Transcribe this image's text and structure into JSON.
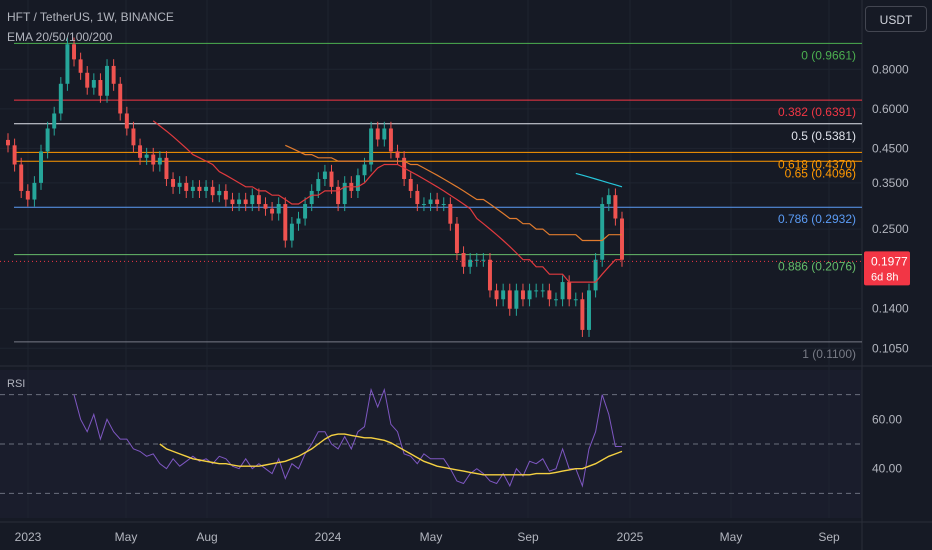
{
  "header": {
    "symbol_title": "HFT / TetherUS, 1W, BINANCE",
    "indicator_label": "EMA 20/50/100/200",
    "currency": "USDT",
    "rsi_label": "RSI"
  },
  "colors": {
    "background": "#161a25",
    "grid": "#1f2430",
    "candle_up": "#26a69a",
    "candle_down": "#ef5350",
    "ema20": "#e03a3e",
    "ema50": "#e07b2e",
    "ema100": "#26c6da",
    "rsi_line": "#7e57c2",
    "rsi_ma": "#f5d142",
    "text": "#b2b5be",
    "price_badge": "#f23645"
  },
  "chart_data": [
    {
      "type": "candlestick",
      "title": "HFT / TetherUS, 1W, BINANCE",
      "scale": "log",
      "ylim": [
        0.095,
        1.25
      ],
      "y_ticks": [
        {
          "value": 0.8,
          "label": "0.8000"
        },
        {
          "value": 0.6,
          "label": "0.6000"
        },
        {
          "value": 0.45,
          "label": "0.4500"
        },
        {
          "value": 0.35,
          "label": "0.3500"
        },
        {
          "value": 0.25,
          "label": "0.2500"
        },
        {
          "value": 0.14,
          "label": "0.1400"
        },
        {
          "value": 0.105,
          "label": "0.1050"
        }
      ],
      "x_ticks": [
        "2023",
        "May",
        "Aug",
        "2024",
        "May",
        "Sep",
        "2025",
        "May",
        "Sep"
      ],
      "last_price": {
        "value": 0.1977,
        "label": "0.1977",
        "countdown": "6d 8h"
      },
      "fib_levels": [
        {
          "value": 0.9661,
          "label": "0 (0.9661)",
          "color": "#4caf50"
        },
        {
          "value": 0.6391,
          "label": "0.382 (0.6391)",
          "color": "#f23645"
        },
        {
          "value": 0.5381,
          "label": "0.5 (0.5381)",
          "color": "#e0e3eb"
        },
        {
          "value": 0.437,
          "label": "0.618 (0.4370)",
          "color": "#ff9800"
        },
        {
          "value": 0.4096,
          "label": "0.65 (0.4096)",
          "color": "#ff9800"
        },
        {
          "value": 0.2932,
          "label": "0.786 (0.2932)",
          "color": "#5b9cf6"
        },
        {
          "value": 0.2076,
          "label": "0.886 (0.2076)",
          "color": "#66bb6a"
        },
        {
          "value": 0.11,
          "label": "1 (0.1100)",
          "color": "#787b86"
        }
      ],
      "series": [
        {
          "name": "HFT",
          "close": [
            0.46,
            0.4,
            0.33,
            0.31,
            0.35,
            0.44,
            0.52,
            0.58,
            0.72,
            0.96,
            0.86,
            0.78,
            0.7,
            0.74,
            0.66,
            0.82,
            0.72,
            0.58,
            0.52,
            0.46,
            0.42,
            0.43,
            0.4,
            0.42,
            0.36,
            0.34,
            0.35,
            0.33,
            0.34,
            0.33,
            0.34,
            0.32,
            0.33,
            0.31,
            0.3,
            0.31,
            0.3,
            0.32,
            0.3,
            0.29,
            0.28,
            0.3,
            0.23,
            0.26,
            0.27,
            0.3,
            0.33,
            0.36,
            0.38,
            0.34,
            0.3,
            0.35,
            0.33,
            0.37,
            0.4,
            0.52,
            0.48,
            0.52,
            0.44,
            0.42,
            0.36,
            0.33,
            0.3,
            0.3,
            0.31,
            0.3,
            0.3,
            0.26,
            0.21,
            0.19,
            0.2,
            0.2,
            0.2,
            0.16,
            0.15,
            0.16,
            0.14,
            0.16,
            0.15,
            0.16,
            0.16,
            0.16,
            0.15,
            0.15,
            0.17,
            0.15,
            0.15,
            0.12,
            0.16,
            0.2,
            0.3,
            0.32,
            0.27,
            0.2
          ],
          "ema20": [
            null,
            null,
            null,
            null,
            null,
            null,
            null,
            null,
            null,
            null,
            null,
            null,
            null,
            null,
            null,
            null,
            null,
            null,
            null,
            null,
            null,
            null,
            0.55,
            0.53,
            0.51,
            0.49,
            0.47,
            0.45,
            0.43,
            0.42,
            0.41,
            0.4,
            0.38,
            0.37,
            0.36,
            0.35,
            0.34,
            0.34,
            0.33,
            0.33,
            0.32,
            0.32,
            0.31,
            0.3,
            0.3,
            0.31,
            0.32,
            0.32,
            0.33,
            0.33,
            0.33,
            0.34,
            0.34,
            0.34,
            0.35,
            0.37,
            0.39,
            0.4,
            0.4,
            0.4,
            0.39,
            0.38,
            0.37,
            0.36,
            0.35,
            0.34,
            0.33,
            0.32,
            0.31,
            0.3,
            0.29,
            0.27,
            0.26,
            0.25,
            0.24,
            0.23,
            0.22,
            0.21,
            0.2,
            0.2,
            0.19,
            0.19,
            0.18,
            0.18,
            0.18,
            0.17,
            0.17,
            0.17,
            0.17,
            0.17,
            0.18,
            0.19,
            0.2,
            0.2
          ],
          "ema50": [
            null,
            null,
            null,
            null,
            null,
            null,
            null,
            null,
            null,
            null,
            null,
            null,
            null,
            null,
            null,
            null,
            null,
            null,
            null,
            null,
            null,
            null,
            null,
            null,
            null,
            null,
            null,
            null,
            null,
            null,
            null,
            null,
            null,
            null,
            null,
            null,
            null,
            null,
            null,
            null,
            null,
            null,
            0.46,
            0.45,
            0.44,
            0.43,
            0.43,
            0.42,
            0.42,
            0.42,
            0.41,
            0.41,
            0.41,
            0.41,
            0.41,
            0.41,
            0.41,
            0.41,
            0.41,
            0.41,
            0.41,
            0.4,
            0.4,
            0.39,
            0.38,
            0.37,
            0.36,
            0.35,
            0.34,
            0.33,
            0.32,
            0.31,
            0.31,
            0.3,
            0.29,
            0.28,
            0.27,
            0.27,
            0.26,
            0.26,
            0.25,
            0.25,
            0.24,
            0.24,
            0.24,
            0.24,
            0.24,
            0.23,
            0.23,
            0.23,
            0.23,
            0.24,
            0.24,
            0.24
          ],
          "ema100": [
            null,
            null,
            null,
            null,
            null,
            null,
            null,
            null,
            null,
            null,
            null,
            null,
            null,
            null,
            null,
            null,
            null,
            null,
            null,
            null,
            null,
            null,
            null,
            null,
            null,
            null,
            null,
            null,
            null,
            null,
            null,
            null,
            null,
            null,
            null,
            null,
            null,
            null,
            null,
            null,
            null,
            null,
            null,
            null,
            null,
            null,
            null,
            null,
            null,
            null,
            null,
            null,
            null,
            null,
            null,
            null,
            null,
            null,
            null,
            null,
            null,
            null,
            null,
            null,
            null,
            null,
            null,
            null,
            null,
            null,
            null,
            null,
            null,
            null,
            null,
            null,
            null,
            null,
            null,
            null,
            null,
            null,
            null,
            null,
            null,
            null,
            0.375,
            0.37,
            0.365,
            0.36,
            0.355,
            0.35,
            0.345,
            0.34
          ]
        }
      ]
    },
    {
      "type": "line",
      "title": "RSI",
      "ylim": [
        20,
        80
      ],
      "y_ticks": [
        {
          "value": 60,
          "label": "60.00"
        },
        {
          "value": 40,
          "label": "40.00"
        }
      ],
      "bands": [
        70,
        50,
        30
      ],
      "series": [
        {
          "name": "RSI",
          "values": [
            null,
            null,
            null,
            null,
            null,
            null,
            null,
            null,
            null,
            null,
            70,
            60,
            55,
            62,
            52,
            60,
            55,
            52,
            52,
            48,
            47,
            45,
            46,
            42,
            40,
            44,
            41,
            43,
            45,
            43,
            44,
            42,
            45,
            44,
            41,
            40,
            44,
            40,
            42,
            40,
            38,
            44,
            36,
            42,
            40,
            46,
            50,
            55,
            55,
            50,
            48,
            53,
            48,
            55,
            57,
            72,
            65,
            72,
            58,
            55,
            46,
            45,
            42,
            46,
            44,
            44,
            44,
            40,
            35,
            34,
            38,
            40,
            38,
            35,
            34,
            38,
            33,
            40,
            37,
            43,
            42,
            44,
            39,
            40,
            48,
            40,
            40,
            33,
            48,
            55,
            70,
            62,
            49,
            49
          ]
        },
        {
          "name": "RSI MA",
          "values": [
            null,
            null,
            null,
            null,
            null,
            null,
            null,
            null,
            null,
            null,
            null,
            null,
            null,
            null,
            null,
            null,
            null,
            null,
            null,
            null,
            null,
            null,
            null,
            50,
            48,
            47,
            46,
            45,
            44,
            43.5,
            43,
            42.5,
            42,
            42,
            41.5,
            41,
            41,
            41,
            41,
            41.5,
            42,
            42.5,
            43,
            44,
            45,
            46.5,
            48,
            50,
            52,
            53.5,
            54,
            54,
            53.5,
            53,
            52.5,
            52.5,
            52,
            51.5,
            50.5,
            49,
            47.5,
            46,
            44.5,
            43,
            42,
            41,
            40.5,
            40,
            39.5,
            39,
            38.5,
            38,
            37.5,
            37.5,
            37.5,
            37.5,
            37.5,
            37.5,
            37.5,
            37.5,
            38,
            38,
            38,
            38.5,
            39,
            39.5,
            40,
            40,
            41,
            42,
            43.5,
            45,
            46,
            47
          ]
        }
      ]
    }
  ]
}
